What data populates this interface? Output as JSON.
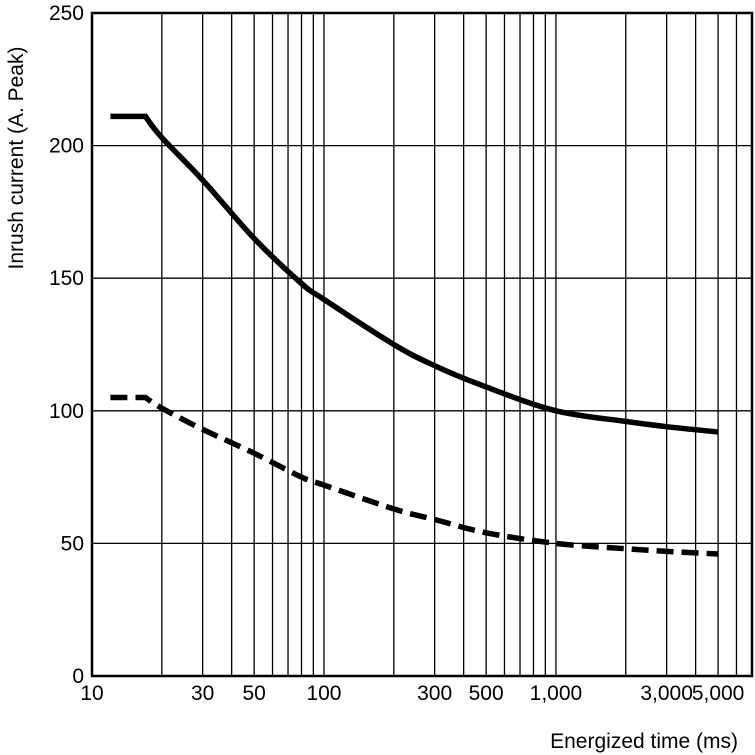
{
  "chart_data": {
    "type": "line",
    "title": "",
    "xlabel": "Energized time (ms)",
    "ylabel": "Inrush current (A. Peak)",
    "x_scale": "log",
    "xlim": [
      10,
      7000
    ],
    "ylim": [
      0,
      250
    ],
    "x_tick_labels": [
      {
        "value": 10,
        "label": "10"
      },
      {
        "value": 30,
        "label": "30"
      },
      {
        "value": 50,
        "label": "50"
      },
      {
        "value": 100,
        "label": "100"
      },
      {
        "value": 300,
        "label": "300"
      },
      {
        "value": 500,
        "label": "500"
      },
      {
        "value": 1000,
        "label": "1,000"
      },
      {
        "value": 3000,
        "label": "3,000"
      },
      {
        "value": 5000,
        "label": "5,000"
      }
    ],
    "y_ticks": [
      0,
      50,
      100,
      150,
      200,
      250
    ],
    "grid": true,
    "series": [
      {
        "style": "solid",
        "x": [
          12,
          17,
          20,
          30,
          50,
          80,
          100,
          200,
          300,
          500,
          1000,
          2000,
          3000,
          5000
        ],
        "y": [
          211,
          211,
          203,
          187,
          165,
          148,
          142,
          125,
          117,
          109,
          100,
          96,
          94,
          92
        ]
      },
      {
        "style": "dashed",
        "x": [
          12,
          17,
          20,
          30,
          50,
          80,
          100,
          200,
          300,
          500,
          1000,
          2000,
          3000,
          5000
        ],
        "y": [
          105,
          105,
          101,
          93,
          84,
          75,
          72,
          63,
          59,
          54,
          50,
          48,
          47,
          46
        ]
      }
    ]
  }
}
